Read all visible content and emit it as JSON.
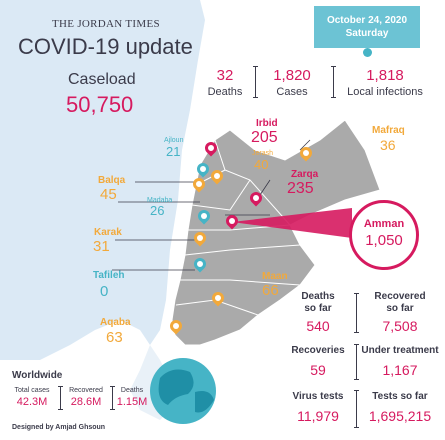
{
  "brand": "THE JORDAN TIMES",
  "title": "COVID-19 update",
  "date_line1": "October 24, 2020",
  "date_line2": "Saturday",
  "caseload": {
    "label": "Caseload",
    "value": "50,750"
  },
  "daily": [
    {
      "value": "32",
      "label": "Deaths"
    },
    {
      "value": "1,820",
      "label": "Cases"
    },
    {
      "value": "1,818",
      "label": "Local infections"
    }
  ],
  "governorates": {
    "irbid": {
      "name": "Irbid",
      "value": "205"
    },
    "ajloun": {
      "name": "Ajloun",
      "value": "21"
    },
    "jerash": {
      "name": "Jerash",
      "value": "40"
    },
    "mafraq": {
      "name": "Mafraq",
      "value": "36"
    },
    "balqa": {
      "name": "Balqa",
      "value": "45"
    },
    "zarqa": {
      "name": "Zarqa",
      "value": "235"
    },
    "madaba": {
      "name": "Madaba",
      "value": "26"
    },
    "amman": {
      "name": "Amman",
      "value": "1,050"
    },
    "karak": {
      "name": "Karak",
      "value": "31"
    },
    "tafileh": {
      "name": "Tafileh",
      "value": "0"
    },
    "maan": {
      "name": "Maan",
      "value": "66"
    },
    "aqaba": {
      "name": "Aqaba",
      "value": "63"
    }
  },
  "totals": {
    "deaths_so_far": {
      "label1": "Deaths",
      "label2": "so far",
      "value": "540"
    },
    "recovered_so_far": {
      "label1": "Recovered",
      "label2": "so far",
      "value": "7,508"
    },
    "recoveries": {
      "label": "Recoveries",
      "value": "59"
    },
    "under_treatment": {
      "label": "Under treatment",
      "value": "1,167"
    },
    "virus_tests": {
      "label": "Virus tests",
      "value": "11,979"
    },
    "tests_so_far": {
      "label": "Tests so far",
      "value": "1,695,215"
    }
  },
  "worldwide": {
    "title": "Worldwide",
    "items": [
      {
        "label": "Total cases",
        "value": "42.3M"
      },
      {
        "label": "Recovered",
        "value": "28.6M"
      },
      {
        "label": "Deaths",
        "value": "1.15M"
      }
    ]
  },
  "credit": "Designed by Amjad Ghsoun",
  "colors": {
    "pink": "#d61a5f",
    "orange": "#f2a93b",
    "teal": "#46b4c6",
    "dark": "#3b3b4a",
    "land": "#aaaaaa",
    "sea": "#dbe9f5"
  }
}
